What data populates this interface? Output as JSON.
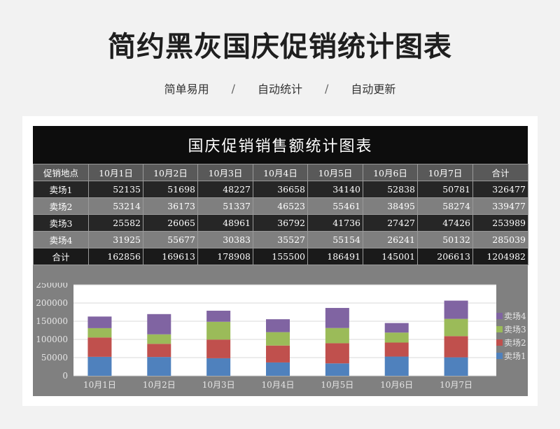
{
  "header": {
    "title": "简约黑灰国庆促销统计图表",
    "tags": [
      "简单易用",
      "自动统计",
      "自动更新"
    ],
    "separator": "/"
  },
  "sheet": {
    "title": "国庆促销销售额统计图表",
    "columns": [
      "促销地点",
      "10月1日",
      "10月2日",
      "10月3日",
      "10月4日",
      "10月5日",
      "10月6日",
      "10月7日",
      "合计"
    ],
    "rows": [
      {
        "name": "卖场1",
        "values": [
          "52135",
          "51698",
          "48227",
          "36658",
          "34140",
          "52838",
          "50781",
          "326477"
        ]
      },
      {
        "name": "卖场2",
        "values": [
          "53214",
          "36173",
          "51337",
          "46523",
          "55461",
          "38495",
          "58274",
          "339477"
        ]
      },
      {
        "name": "卖场3",
        "values": [
          "25582",
          "26065",
          "48961",
          "36792",
          "41736",
          "27427",
          "47426",
          "253989"
        ]
      },
      {
        "name": "卖场4",
        "values": [
          "31925",
          "55677",
          "30383",
          "35527",
          "55154",
          "26241",
          "50132",
          "285039"
        ]
      }
    ],
    "total": {
      "name": "合计",
      "values": [
        "162856",
        "169613",
        "178908",
        "155500",
        "186491",
        "145001",
        "206613",
        "1204982"
      ]
    }
  },
  "chart_data": {
    "type": "bar",
    "stacked": true,
    "categories": [
      "10月1日",
      "10月2日",
      "10月3日",
      "10月4日",
      "10月5日",
      "10月6日",
      "10月7日"
    ],
    "series": [
      {
        "name": "卖场1",
        "color": "#4f81bd",
        "values": [
          52135,
          51698,
          48227,
          36658,
          34140,
          52838,
          50781
        ]
      },
      {
        "name": "卖场2",
        "color": "#c0504d",
        "values": [
          53214,
          36173,
          51337,
          46523,
          55461,
          38495,
          58274
        ]
      },
      {
        "name": "卖场3",
        "color": "#9bbb59",
        "values": [
          25582,
          26065,
          48961,
          36792,
          41736,
          27427,
          47426
        ]
      },
      {
        "name": "卖场4",
        "color": "#8064a2",
        "values": [
          31925,
          55677,
          30383,
          35527,
          55154,
          26241,
          50132
        ]
      }
    ],
    "ylim": [
      0,
      250000
    ],
    "yticks": [
      "0",
      "50000",
      "100000",
      "150000",
      "200000",
      "250000"
    ],
    "grid": true,
    "legend": "right"
  }
}
